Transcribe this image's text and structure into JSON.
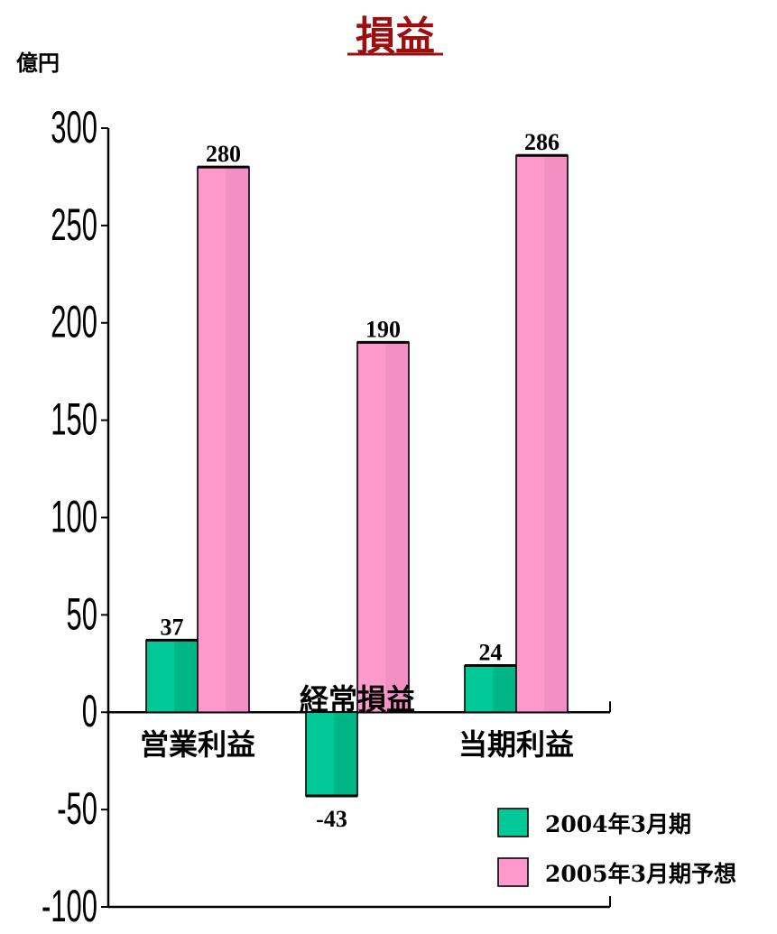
{
  "chart_data": {
    "type": "bar",
    "title": "損益",
    "unit_label": "億円",
    "categories": [
      "営業利益",
      "経常損益",
      "当期利益"
    ],
    "series": [
      {
        "name": "2004年3月期",
        "values": [
          37,
          -43,
          24
        ],
        "color": "#00c896",
        "shade": "#00a77c"
      },
      {
        "name": "2005年3月期予想",
        "values": [
          280,
          190,
          286
        ],
        "color": "#ff99cc",
        "shade": "#e889bb"
      }
    ],
    "data_labels": [
      [
        "37",
        "-43",
        "24"
      ],
      [
        "280",
        "190",
        "286"
      ]
    ],
    "ylim": [
      -100,
      300
    ],
    "yticks": [
      "300",
      "250",
      "200",
      "150",
      "100",
      "50",
      "0",
      "-50",
      "-100"
    ],
    "ytick_values": [
      300,
      250,
      200,
      150,
      100,
      50,
      0,
      -50,
      -100
    ],
    "legend_position": "bottom-right",
    "grid": false
  }
}
